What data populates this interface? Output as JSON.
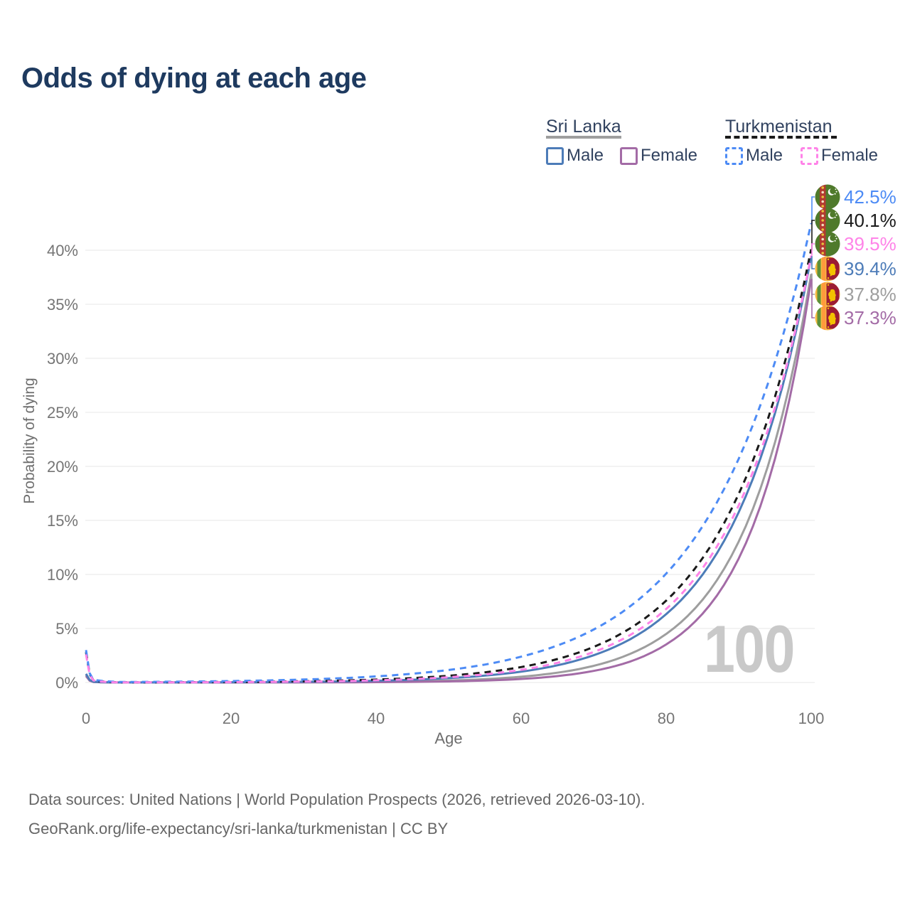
{
  "watermark_age": "100",
  "footer": {
    "line1": "Data sources: United Nations | World Population Prospects (2026, retrieved 2026-03-10).",
    "line2": "GeoRank.org/life-expectancy/sri-lanka/turkmenistan | CC BY"
  },
  "legend": {
    "sri_lanka_label": "Sri Lanka",
    "turkmenistan_label": "Turkmenistan",
    "male_label": "Male",
    "female_label": "Female"
  },
  "colors": {
    "title_text": "#1e3a5f",
    "legend_text": "#31425f",
    "tick_text": "#757575",
    "gridline": "#ececec",
    "watermark": "#c9c9c9",
    "sri_lanka_underline": "#9e9e9e",
    "turkmenistan_underline": "#1a1a1a"
  },
  "chart_data": {
    "type": "line",
    "title": "Odds of dying at each age",
    "xlabel": "Age",
    "ylabel": "Probability of dying",
    "x_ticks": [
      0,
      20,
      40,
      60,
      80,
      100
    ],
    "y_ticks_pct": [
      0,
      5,
      10,
      15,
      20,
      25,
      30,
      35,
      40
    ],
    "xlim": [
      0,
      100
    ],
    "ylim_pct": [
      0,
      44
    ],
    "grid": "horizontal-only",
    "legend_position": "top-right",
    "ages": [
      0,
      1,
      5,
      10,
      15,
      20,
      25,
      30,
      35,
      40,
      45,
      50,
      55,
      60,
      65,
      70,
      75,
      80,
      85,
      90,
      95,
      100
    ],
    "series": [
      {
        "id": "turkmenistan-male",
        "country": "Turkmenistan",
        "sex": "Male",
        "style": "dashed",
        "color": "#4d8bf5",
        "flag_icon": "turkmenistan-flag-icon",
        "flag": "turkmenistan",
        "end_label": "42.5%",
        "values_pct": [
          3.0,
          0.25,
          0.045,
          0.065,
          0.093,
          0.134,
          0.192,
          0.275,
          0.394,
          0.565,
          0.81,
          1.16,
          1.66,
          2.39,
          3.42,
          4.9,
          7.03,
          10.07,
          14.43,
          20.69,
          29.65,
          42.5
        ]
      },
      {
        "id": "turkmenistan-both",
        "country": "Turkmenistan",
        "sex": "Both sexes",
        "style": "dashed",
        "color": "#1a1a1a",
        "flag_icon": "turkmenistan-flag-icon",
        "flag": "turkmenistan",
        "end_label": "40.1%",
        "values_pct": [
          2.8,
          0.22,
          0.015,
          0.022,
          0.034,
          0.051,
          0.078,
          0.118,
          0.179,
          0.27,
          0.411,
          0.621,
          0.943,
          1.43,
          2.17,
          3.29,
          5.0,
          7.57,
          11.49,
          17.44,
          26.43,
          40.1
        ]
      },
      {
        "id": "turkmenistan-female",
        "country": "Turkmenistan",
        "sex": "Female",
        "style": "dashed",
        "color": "#ff83e8",
        "flag_icon": "turkmenistan-flag-icon",
        "flag": "turkmenistan",
        "end_label": "39.5%",
        "values_pct": [
          2.6,
          0.2,
          0.009,
          0.014,
          0.022,
          0.035,
          0.054,
          0.083,
          0.129,
          0.201,
          0.312,
          0.485,
          0.753,
          1.17,
          1.82,
          2.82,
          4.38,
          6.8,
          10.55,
          16.38,
          25.44,
          39.5
        ]
      },
      {
        "id": "sri-lanka-male",
        "country": "Sri Lanka",
        "sex": "Male",
        "style": "solid",
        "color": "#4d7cb8",
        "flag_icon": "sri-lanka-flag-icon",
        "flag": "sri-lanka",
        "end_label": "39.4%",
        "values_pct": [
          0.8,
          0.07,
          0.007,
          0.01,
          0.016,
          0.026,
          0.041,
          0.064,
          0.102,
          0.161,
          0.255,
          0.401,
          0.635,
          1.0,
          1.59,
          2.52,
          3.99,
          6.32,
          9.96,
          15.75,
          24.9,
          39.4
        ]
      },
      {
        "id": "sri-lanka-both",
        "country": "Sri Lanka",
        "sex": "Both sexes",
        "style": "solid",
        "color": "#9e9e9e",
        "flag_icon": "sri-lanka-flag-icon",
        "flag": "sri-lanka",
        "end_label": "37.8%",
        "values_pct": [
          0.7,
          0.06,
          0.002,
          0.003,
          0.004,
          0.008,
          0.013,
          0.022,
          0.037,
          0.063,
          0.108,
          0.183,
          0.313,
          0.534,
          0.908,
          1.54,
          2.64,
          4.49,
          7.64,
          13.03,
          22.2,
          37.8
        ]
      },
      {
        "id": "sri-lanka-female",
        "country": "Sri Lanka",
        "sex": "Female",
        "style": "solid",
        "color": "#a36ba6",
        "flag_icon": "sri-lanka-flag-icon",
        "flag": "sri-lanka",
        "end_label": "37.3%",
        "values_pct": [
          0.6,
          0.05,
          0.001,
          0.001,
          0.002,
          0.003,
          0.005,
          0.01,
          0.017,
          0.031,
          0.056,
          0.101,
          0.182,
          0.329,
          0.594,
          1.07,
          1.93,
          3.52,
          6.35,
          11.46,
          20.68,
          37.3
        ]
      }
    ]
  }
}
